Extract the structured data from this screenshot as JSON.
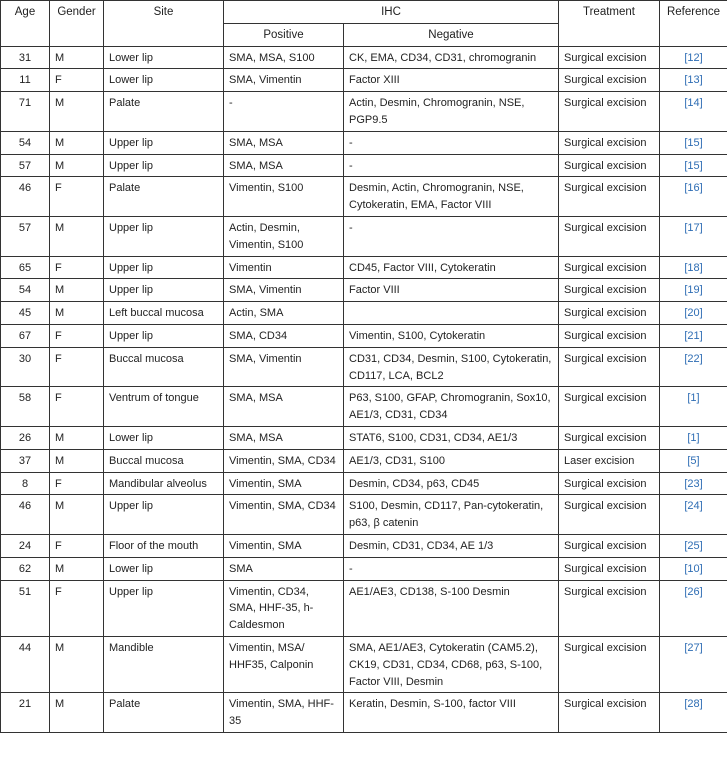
{
  "headers": {
    "age": "Age",
    "gender": "Gender",
    "site": "Site",
    "ihc": "IHC",
    "positive": "Positive",
    "negative": "Negative",
    "treatment": "Treatment",
    "reference": "Reference"
  },
  "colors": {
    "reference": "#2e6db4",
    "border": "#333333"
  },
  "rows": [
    {
      "age": "31",
      "gender": "M",
      "site": "Lower lip",
      "positive": "SMA, MSA, S100",
      "negative": "CK, EMA, CD34, CD31, chromogranin",
      "treatment": "Surgical excision",
      "reference": "[12]"
    },
    {
      "age": "11",
      "gender": "F",
      "site": "Lower lip",
      "positive": "SMA, Vimentin",
      "negative": "Factor XIII",
      "treatment": "Surgical excision",
      "reference": "[13]"
    },
    {
      "age": "71",
      "gender": "M",
      "site": "Palate",
      "positive": "-",
      "negative": "Actin, Desmin, Chromogranin, NSE, PGP9.5",
      "treatment": "Surgical excision",
      "reference": "[14]"
    },
    {
      "age": "54",
      "gender": "M",
      "site": "Upper lip",
      "positive": "SMA, MSA",
      "negative": "-",
      "treatment": "Surgical excision",
      "reference": "[15]"
    },
    {
      "age": "57",
      "gender": "M",
      "site": "Upper lip",
      "positive": "SMA, MSA",
      "negative": "-",
      "treatment": "Surgical excision",
      "reference": "[15]"
    },
    {
      "age": "46",
      "gender": "F",
      "site": "Palate",
      "positive": "Vimentin, S100",
      "negative": "Desmin, Actin, Chromogranin, NSE, Cytokeratin, EMA, Factor VIII",
      "treatment": "Surgical excision",
      "reference": "[16]"
    },
    {
      "age": "57",
      "gender": "M",
      "site": "Upper lip",
      "positive": "Actin, Desmin, Vimentin, S100",
      "negative": "-",
      "treatment": "Surgical excision",
      "reference": "[17]"
    },
    {
      "age": "65",
      "gender": "F",
      "site": "Upper lip",
      "positive": "Vimentin",
      "negative": "CD45, Factor VIII, Cytokeratin",
      "treatment": "Surgical excision",
      "reference": "[18]"
    },
    {
      "age": "54",
      "gender": "M",
      "site": "Upper lip",
      "positive": "SMA, Vimentin",
      "negative": "Factor VIII",
      "treatment": "Surgical excision",
      "reference": "[19]"
    },
    {
      "age": "45",
      "gender": "M",
      "site": "Left buccal mucosa",
      "positive": "Actin, SMA",
      "negative": "",
      "treatment": "Surgical excision",
      "reference": "[20]"
    },
    {
      "age": "67",
      "gender": "F",
      "site": "Upper lip",
      "positive": "SMA, CD34",
      "negative": "Vimentin, S100, Cytokeratin",
      "treatment": "Surgical excision",
      "reference": "[21]"
    },
    {
      "age": "30",
      "gender": "F",
      "site": "Buccal mucosa",
      "positive": "SMA, Vimentin",
      "negative": "CD31, CD34, Desmin, S100, Cytokeratin, CD117, LCA, BCL2",
      "treatment": "Surgical excision",
      "reference": "[22]"
    },
    {
      "age": "58",
      "gender": "F",
      "site": "Ventrum of tongue",
      "positive": "SMA, MSA",
      "negative": "P63, S100, GFAP, Chromogranin, Sox10, AE1/3, CD31, CD34",
      "treatment": "Surgical excision",
      "reference": "[1]"
    },
    {
      "age": "26",
      "gender": "M",
      "site": "Lower lip",
      "positive": "SMA, MSA",
      "negative": "STAT6, S100, CD31, CD34, AE1/3",
      "treatment": "Surgical excision",
      "reference": "[1]"
    },
    {
      "age": "37",
      "gender": "M",
      "site": "Buccal mucosa",
      "positive": "Vimentin, SMA, CD34",
      "negative": "AE1/3, CD31, S100",
      "treatment": "Laser excision",
      "reference": "[5]"
    },
    {
      "age": "8",
      "gender": "F",
      "site": "Mandibular alveolus",
      "positive": "Vimentin, SMA",
      "negative": "Desmin, CD34, p63, CD45",
      "treatment": "Surgical excision",
      "reference": "[23]"
    },
    {
      "age": "46",
      "gender": "M",
      "site": "Upper lip",
      "positive": "Vimentin, SMA, CD34",
      "negative": "S100, Desmin, CD117, Pan-cytokeratin, p63, β catenin",
      "treatment": "Surgical excision",
      "reference": "[24]"
    },
    {
      "age": "24",
      "gender": "F",
      "site": "Floor of the mouth",
      "positive": "Vimentin, SMA",
      "negative": "Desmin, CD31, CD34, AE 1/3",
      "treatment": "Surgical excision",
      "reference": "[25]"
    },
    {
      "age": "62",
      "gender": "M",
      "site": "Lower lip",
      "positive": "SMA",
      "negative": "-",
      "treatment": "Surgical excision",
      "reference": "[10]"
    },
    {
      "age": "51",
      "gender": "F",
      "site": "Upper lip",
      "positive": "Vimentin, CD34, SMA, HHF-35, h-Caldesmon",
      "negative": "AE1/AE3, CD138, S-100 Desmin",
      "treatment": "Surgical excision",
      "reference": "[26]"
    },
    {
      "age": "44",
      "gender": "M",
      "site": "Mandible",
      "positive": "Vimentin, MSA/ HHF35, Calponin",
      "negative": "SMA, AE1/AE3, Cytokeratin (CAM5.2), CK19, CD31, CD34, CD68, p63, S-100, Factor VIII, Desmin",
      "treatment": "Surgical excision",
      "reference": "[27]"
    },
    {
      "age": "21",
      "gender": "M",
      "site": "Palate",
      "positive": "Vimentin, SMA, HHF-35",
      "negative": "Keratin, Desmin, S-100, factor VIII",
      "treatment": "Surgical excision",
      "reference": "[28]"
    }
  ]
}
